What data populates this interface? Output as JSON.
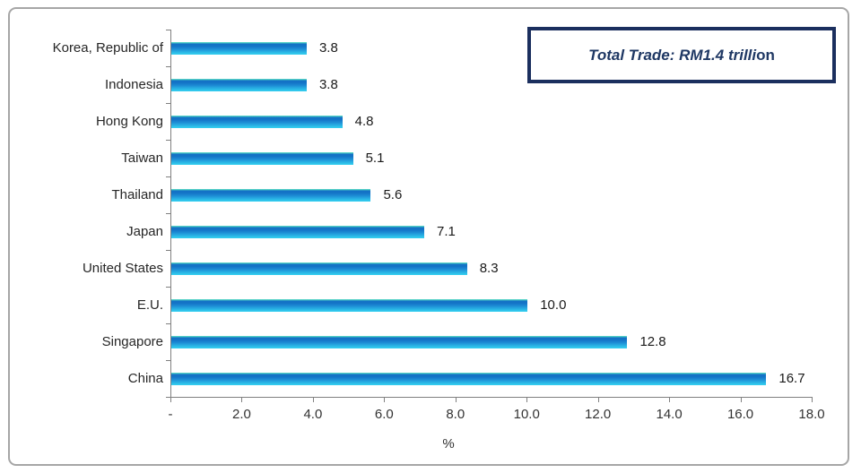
{
  "chart_data": {
    "type": "bar",
    "orientation": "horizontal",
    "title": "",
    "xlabel": "%",
    "ylabel": "",
    "xlim": [
      0,
      18
    ],
    "grid": false,
    "legend": null,
    "categories": [
      "Korea, Republic of",
      "Indonesia",
      "Hong Kong",
      "Taiwan",
      "Thailand",
      "Japan",
      "United States",
      "E.U.",
      "Singapore",
      "China"
    ],
    "values": [
      3.8,
      3.8,
      4.8,
      5.1,
      5.6,
      7.1,
      8.3,
      10.0,
      12.8,
      16.7
    ],
    "value_labels": [
      "3.8",
      "3.8",
      "4.8",
      "5.1",
      "5.6",
      "7.1",
      "8.3",
      "10.0",
      "12.8",
      "16.7"
    ],
    "x_tick_values": [
      0,
      2,
      4,
      6,
      8,
      10,
      12,
      14,
      16,
      18
    ],
    "x_tick_labels": [
      "-",
      "2.0",
      "4.0",
      "6.0",
      "8.0",
      "10.0",
      "12.0",
      "14.0",
      "16.0",
      "18.0"
    ],
    "annotation": {
      "text": "Total Trade: RM1.4 trillion",
      "italic_segment": "Total Trade: RM1.4 trilli",
      "upright_segment": "on"
    },
    "colors": {
      "bar_top_edge": "#5bd4c9",
      "bar_dark_band": "#1371c5",
      "bar_bottom": "#35d1f0",
      "axis": "#808080",
      "label_text": "#262626",
      "annotation_border": "#1b2f5e",
      "annotation_text": "#1f3864",
      "frame_border": "#a6a6a6"
    }
  }
}
